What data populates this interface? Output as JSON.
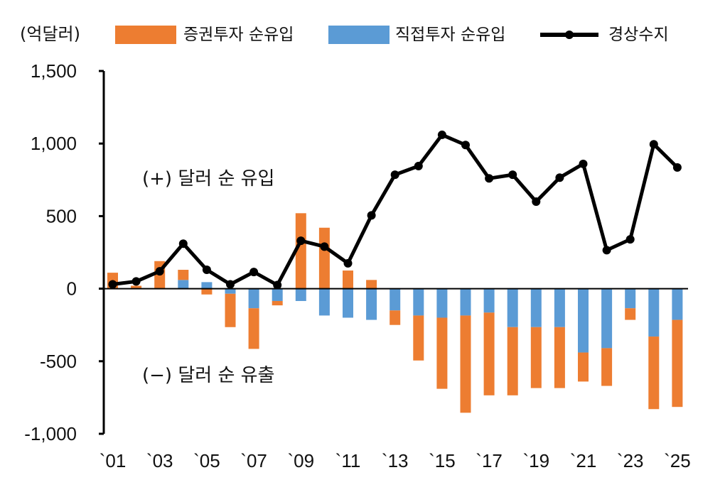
{
  "chart_data": {
    "type": "bar+line",
    "ylabel": "(억달러)",
    "ylim": [
      -1000,
      1500
    ],
    "yticks": [
      1500,
      1000,
      500,
      0,
      -500,
      -1000
    ],
    "ytick_labels": [
      "1,500",
      "1,000",
      "500",
      "0",
      "-500",
      "-1,000"
    ],
    "categories": [
      "`01",
      "`02",
      "`03",
      "`04",
      "`05",
      "`06",
      "`07",
      "`08",
      "`09",
      "`10",
      "`11",
      "`12",
      "`13",
      "`14",
      "`15",
      "`16",
      "`17",
      "`18",
      "`19",
      "`20",
      "`21",
      "`22",
      "`23",
      "`24",
      "`25"
    ],
    "xtick_labels": [
      "`01",
      "`03",
      "`05",
      "`07",
      "`09",
      "`11",
      "`13",
      "`15",
      "`17",
      "`19",
      "`21",
      "`23",
      "`25"
    ],
    "stacked": true,
    "series": [
      {
        "name": "증권투자 순유입",
        "type": "bar",
        "color": "#ED7D31",
        "values": [
          110,
          20,
          190,
          70,
          -40,
          -230,
          -280,
          -30,
          520,
          420,
          125,
          60,
          -100,
          -310,
          -490,
          -670,
          -570,
          -470,
          -420,
          -420,
          -200,
          -260,
          -80,
          -500,
          -600
        ]
      },
      {
        "name": "직접투자 순유입",
        "type": "bar",
        "color": "#5B9BD5",
        "values": [
          0,
          0,
          0,
          60,
          45,
          -35,
          -135,
          -85,
          -85,
          -185,
          -200,
          -215,
          -150,
          -185,
          -200,
          -185,
          -165,
          -265,
          -265,
          -265,
          -440,
          -410,
          -135,
          -330,
          -215
        ]
      },
      {
        "name": "경상수지",
        "type": "line",
        "color": "#000000",
        "values": [
          30,
          50,
          120,
          310,
          130,
          30,
          115,
          25,
          330,
          290,
          175,
          505,
          785,
          845,
          1060,
          990,
          760,
          785,
          600,
          765,
          860,
          265,
          340,
          995,
          835
        ]
      }
    ],
    "annotations": [
      "(+) 달러 순 유입",
      "(−) 달러 순 유출"
    ],
    "legend_position": "top",
    "grid": false
  }
}
